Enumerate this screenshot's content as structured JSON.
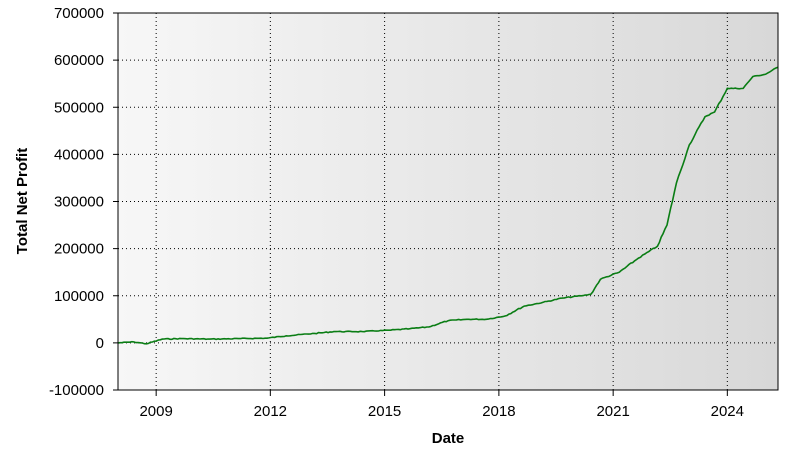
{
  "chart_data": {
    "type": "line",
    "title": "",
    "xlabel": "Date",
    "ylabel": "Total Net Profit",
    "xlim": [
      "2008-01-01",
      "2025-05-01"
    ],
    "ylim": [
      -100000,
      700000
    ],
    "x_ticks": [
      "2009",
      "2012",
      "2015",
      "2018",
      "2021",
      "2024"
    ],
    "y_ticks": [
      "700000",
      "600000",
      "500000",
      "400000",
      "300000",
      "200000",
      "100000",
      "0",
      "-100000"
    ],
    "grid": true,
    "legend": "none",
    "background_gradient": [
      "#f7f7f7",
      "#d8d8d8"
    ],
    "series": [
      {
        "color": "#0a7d14",
        "x": [
          "2008-01-01",
          "2008-06-01",
          "2008-10-01",
          "2009-03-01",
          "2009-09-01",
          "2010-06-01",
          "2011-03-01",
          "2011-12-01",
          "2012-06-01",
          "2013-03-01",
          "2013-09-01",
          "2014-06-01",
          "2015-03-01",
          "2015-09-01",
          "2016-03-01",
          "2016-09-01",
          "2017-03-01",
          "2017-09-01",
          "2018-03-01",
          "2018-09-01",
          "2019-03-01",
          "2019-09-01",
          "2020-03-01",
          "2020-06-01",
          "2020-09-01",
          "2021-03-01",
          "2021-09-01",
          "2022-03-01",
          "2022-06-01",
          "2022-09-01",
          "2023-01-01",
          "2023-06-01",
          "2023-09-01",
          "2024-01-01",
          "2024-06-01",
          "2024-09-01",
          "2025-01-01",
          "2025-05-01"
        ],
        "y": [
          0,
          2000,
          -2000,
          8000,
          9000,
          8000,
          9000,
          10000,
          15000,
          20000,
          24000,
          24000,
          27000,
          30000,
          34000,
          47000,
          50000,
          50000,
          57000,
          78000,
          86000,
          95000,
          100000,
          103000,
          135000,
          150000,
          180000,
          205000,
          250000,
          340000,
          420000,
          480000,
          490000,
          540000,
          540000,
          565000,
          570000,
          585000
        ]
      }
    ]
  }
}
